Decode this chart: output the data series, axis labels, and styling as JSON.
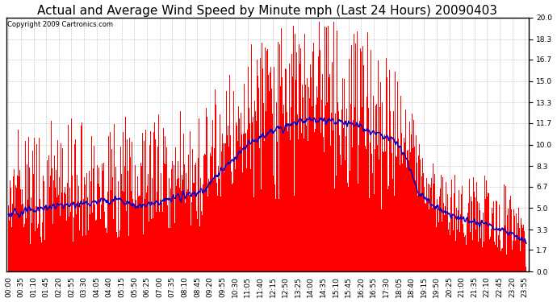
{
  "title": "Actual and Average Wind Speed by Minute mph (Last 24 Hours) 20090403",
  "copyright": "Copyright 2009 Cartronics.com",
  "ylim": [
    0.0,
    20.0
  ],
  "yticks": [
    0.0,
    1.7,
    3.3,
    5.0,
    6.7,
    8.3,
    10.0,
    11.7,
    13.3,
    15.0,
    16.7,
    18.3,
    20.0
  ],
  "bar_color": "#FF0000",
  "line_color": "#0000CC",
  "background_color": "#FFFFFF",
  "grid_color": "#BBBBBB",
  "title_fontsize": 11,
  "tick_fontsize": 6.5,
  "copyright_fontsize": 6,
  "figsize": [
    6.9,
    3.75
  ],
  "dpi": 100
}
